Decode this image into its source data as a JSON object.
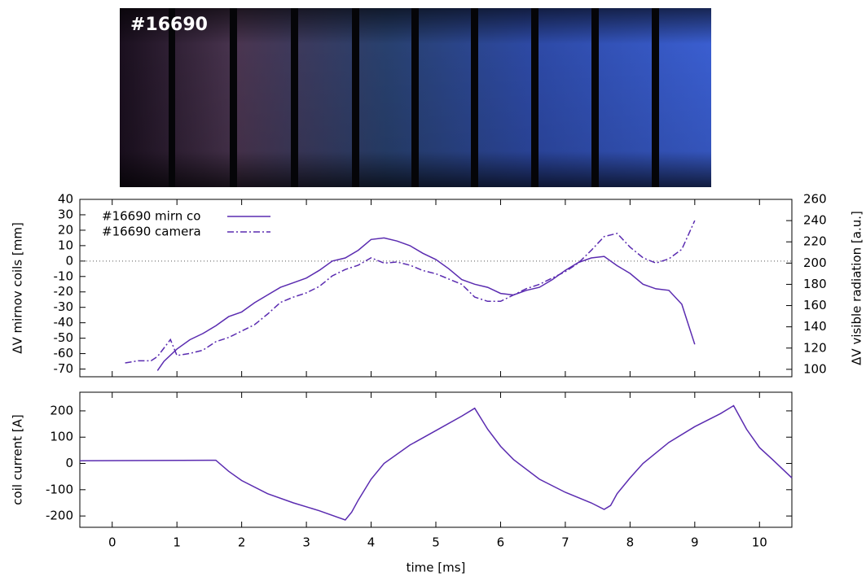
{
  "image": {
    "label": "#16690"
  },
  "chart_data": [
    {
      "type": "line",
      "ylabel": "ΔV mirnov coils [mm]",
      "y2label": "ΔV visible radiation [a.u.]",
      "xlim": [
        -0.5,
        10.5
      ],
      "ylim": [
        -75,
        40
      ],
      "y2lim": [
        93,
        260
      ],
      "yticks": [
        40,
        30,
        20,
        10,
        0,
        -10,
        -20,
        -30,
        -40,
        -50,
        -60,
        -70
      ],
      "y2ticks": [
        260,
        240,
        220,
        200,
        180,
        160,
        140,
        120,
        100
      ],
      "zero_line": true,
      "legend": "upper-left",
      "series": [
        {
          "name": "#16690 mirn co",
          "color": "#5a2bb0",
          "style": "solid",
          "x": [
            0.7,
            0.8,
            1.0,
            1.2,
            1.4,
            1.6,
            1.8,
            2.0,
            2.2,
            2.4,
            2.6,
            2.8,
            3.0,
            3.2,
            3.4,
            3.6,
            3.8,
            4.0,
            4.2,
            4.4,
            4.6,
            4.8,
            5.0,
            5.2,
            5.4,
            5.6,
            5.8,
            6.0,
            6.2,
            6.4,
            6.6,
            6.8,
            7.0,
            7.2,
            7.4,
            7.6,
            7.8,
            8.0,
            8.2,
            8.4,
            8.6,
            8.8,
            9.0
          ],
          "values": [
            -71,
            -65,
            -57,
            -51,
            -47,
            -42,
            -36,
            -33,
            -27,
            -22,
            -17,
            -14,
            -11,
            -6,
            0,
            2,
            7,
            14,
            15,
            13,
            10,
            5,
            1,
            -5,
            -12,
            -15,
            -17,
            -21,
            -22,
            -19,
            -17,
            -12,
            -6,
            -1,
            2,
            3,
            -3,
            -8,
            -15,
            -18,
            -19,
            -28,
            -54
          ]
        },
        {
          "name": "#16690 camera",
          "color": "#5a2bb0",
          "style": "dashdot",
          "axis": "y2",
          "x": [
            0.2,
            0.4,
            0.6,
            0.7,
            0.9,
            1.0,
            1.2,
            1.4,
            1.6,
            1.8,
            2.0,
            2.2,
            2.4,
            2.6,
            2.8,
            3.0,
            3.2,
            3.4,
            3.6,
            3.8,
            4.0,
            4.2,
            4.4,
            4.6,
            4.8,
            5.0,
            5.2,
            5.4,
            5.6,
            5.8,
            6.0,
            6.2,
            6.4,
            6.6,
            6.8,
            7.0,
            7.2,
            7.4,
            7.6,
            7.8,
            8.0,
            8.2,
            8.4,
            8.6,
            8.8,
            9.0
          ],
          "values": [
            106,
            108,
            108,
            112,
            128,
            113,
            115,
            118,
            126,
            130,
            136,
            142,
            152,
            163,
            168,
            172,
            178,
            188,
            194,
            198,
            205,
            200,
            201,
            198,
            193,
            190,
            185,
            180,
            168,
            164,
            164,
            170,
            176,
            180,
            186,
            192,
            200,
            212,
            225,
            228,
            215,
            205,
            200,
            204,
            213,
            240
          ]
        }
      ]
    },
    {
      "type": "line",
      "xlabel": "time [ms]",
      "ylabel": "coil current [A]",
      "xlim": [
        -0.5,
        10.5
      ],
      "ylim": [
        -243,
        271
      ],
      "xticks": [
        0,
        1,
        2,
        3,
        4,
        5,
        6,
        7,
        8,
        9,
        10
      ],
      "yticks": [
        200,
        100,
        0,
        -100,
        -200
      ],
      "series": [
        {
          "color": "#5a2bb0",
          "style": "solid",
          "x": [
            -0.5,
            1.6,
            1.8,
            2.0,
            2.4,
            2.8,
            3.2,
            3.6,
            3.7,
            3.8,
            4.0,
            4.2,
            4.6,
            5.0,
            5.4,
            5.6,
            5.8,
            6.0,
            6.2,
            6.6,
            7.0,
            7.4,
            7.6,
            7.7,
            7.8,
            8.0,
            8.2,
            8.6,
            9.0,
            9.4,
            9.6,
            9.8,
            10.0,
            10.2,
            10.5
          ],
          "values": [
            10,
            12,
            -30,
            -65,
            -115,
            -150,
            -180,
            -215,
            -185,
            -140,
            -60,
            0,
            70,
            125,
            180,
            210,
            130,
            65,
            15,
            -60,
            -110,
            -150,
            -175,
            -160,
            -115,
            -55,
            0,
            80,
            140,
            190,
            220,
            130,
            60,
            15,
            -55
          ]
        }
      ]
    }
  ]
}
